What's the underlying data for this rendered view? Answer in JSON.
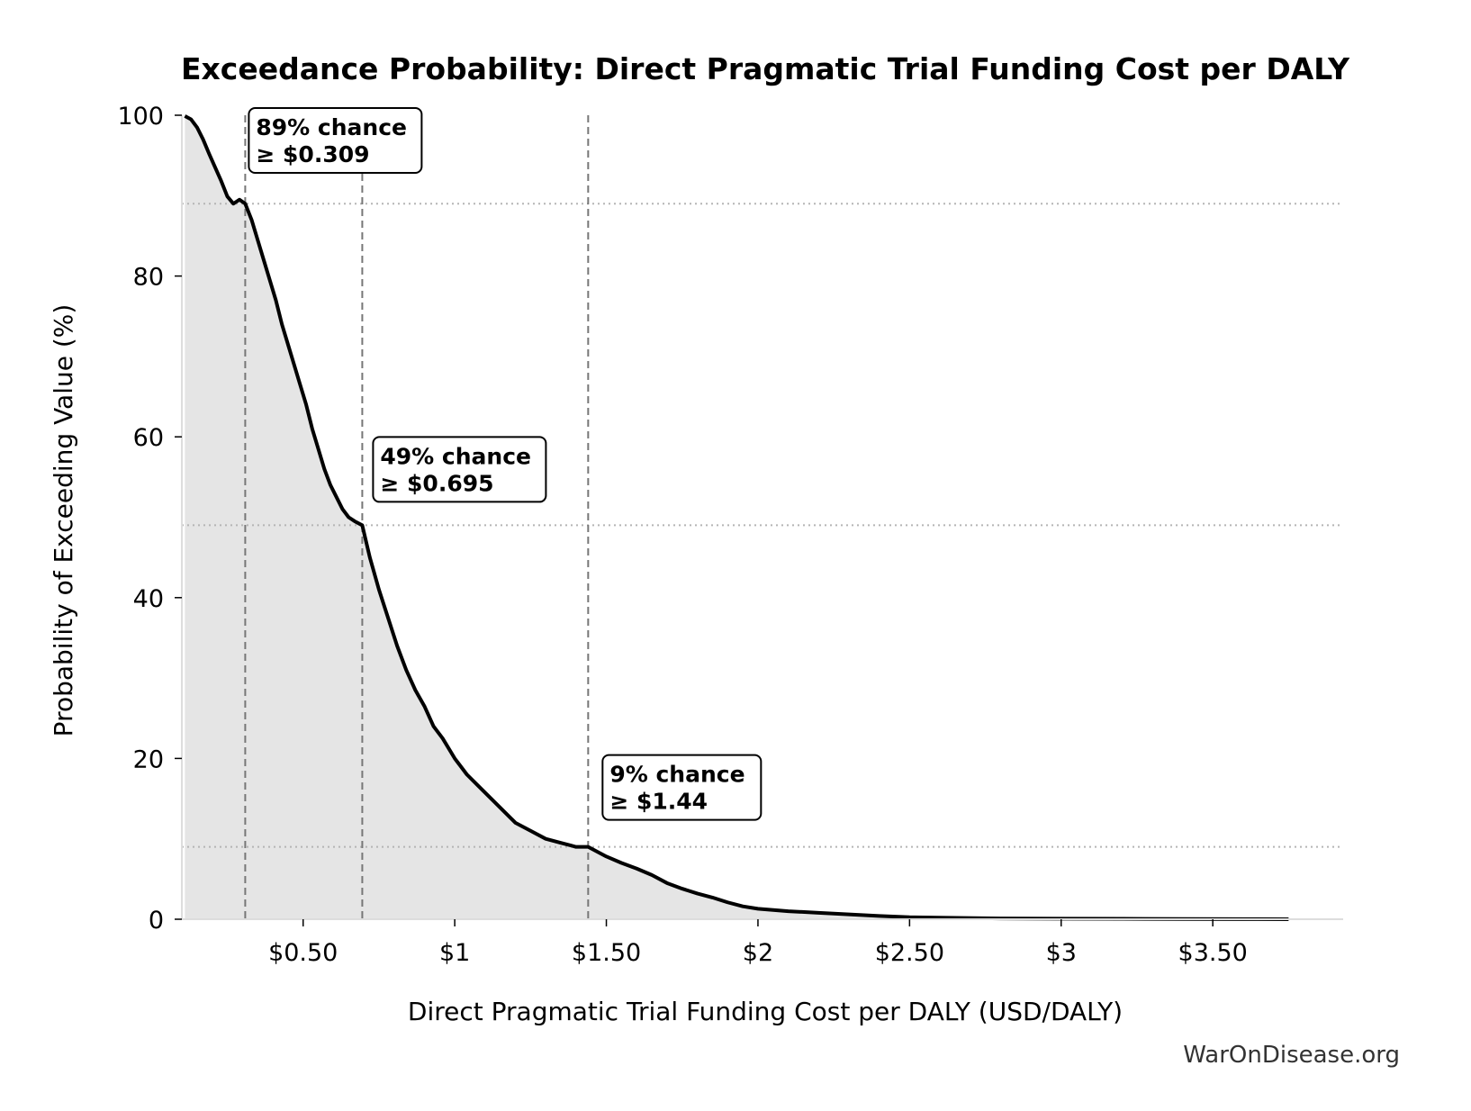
{
  "chart_data": {
    "type": "area",
    "title": "Exceedance Probability: Direct Pragmatic Trial Funding Cost per DALY",
    "xlabel": "Direct Pragmatic Trial Funding Cost per DALY (USD/DALY)",
    "ylabel": "Probability of Exceeding Value (%)",
    "xlim": [
      0.1,
      3.93
    ],
    "ylim": [
      0,
      100
    ],
    "x_ticks": [
      {
        "value": 0.5,
        "label": "$0.50"
      },
      {
        "value": 1.0,
        "label": "$1"
      },
      {
        "value": 1.5,
        "label": "$1.50"
      },
      {
        "value": 2.0,
        "label": "$2"
      },
      {
        "value": 2.5,
        "label": "$2.50"
      },
      {
        "value": 3.0,
        "label": "$3"
      },
      {
        "value": 3.5,
        "label": "$3.50"
      }
    ],
    "y_ticks": [
      {
        "value": 0,
        "label": "0"
      },
      {
        "value": 20,
        "label": "20"
      },
      {
        "value": 40,
        "label": "40"
      },
      {
        "value": 60,
        "label": "60"
      },
      {
        "value": 80,
        "label": "80"
      },
      {
        "value": 100,
        "label": "100"
      }
    ],
    "grid": false,
    "series": [
      {
        "x": [
          0.11,
          0.13,
          0.15,
          0.17,
          0.19,
          0.21,
          0.23,
          0.25,
          0.27,
          0.29,
          0.309,
          0.33,
          0.35,
          0.37,
          0.39,
          0.41,
          0.43,
          0.45,
          0.47,
          0.49,
          0.51,
          0.53,
          0.55,
          0.57,
          0.59,
          0.61,
          0.63,
          0.65,
          0.67,
          0.695,
          0.72,
          0.75,
          0.78,
          0.81,
          0.84,
          0.87,
          0.9,
          0.93,
          0.96,
          1.0,
          1.04,
          1.08,
          1.12,
          1.16,
          1.2,
          1.25,
          1.3,
          1.35,
          1.4,
          1.44,
          1.5,
          1.55,
          1.6,
          1.65,
          1.7,
          1.75,
          1.8,
          1.85,
          1.9,
          1.95,
          2.0,
          2.1,
          2.2,
          2.3,
          2.4,
          2.5,
          2.6,
          2.8,
          3.0,
          3.2,
          3.4,
          3.6,
          3.75
        ],
        "values": [
          99.9,
          99.5,
          98.5,
          97.0,
          95.2,
          93.5,
          91.8,
          89.9,
          89.0,
          89.5,
          89.0,
          87.0,
          84.5,
          82.0,
          79.5,
          77.0,
          74.0,
          71.5,
          69.0,
          66.5,
          64.0,
          61.0,
          58.5,
          56.0,
          54.0,
          52.5,
          51.0,
          50.0,
          49.5,
          49.0,
          45.0,
          41.0,
          37.5,
          34.0,
          31.0,
          28.5,
          26.5,
          24.0,
          22.5,
          20.0,
          18.0,
          16.5,
          15.0,
          13.5,
          12.0,
          11.0,
          10.0,
          9.5,
          9.0,
          9.0,
          7.8,
          7.0,
          6.3,
          5.5,
          4.5,
          3.8,
          3.2,
          2.7,
          2.1,
          1.6,
          1.3,
          1.0,
          0.8,
          0.6,
          0.4,
          0.25,
          0.2,
          0.1,
          0.07,
          0.05,
          0.03,
          0.02,
          0.0
        ]
      }
    ],
    "reference_lines": [
      {
        "x": 0.309,
        "y": 89
      },
      {
        "x": 0.695,
        "y": 49
      },
      {
        "x": 1.44,
        "y": 9
      }
    ],
    "annotations": [
      {
        "line1": "89% chance",
        "line2": "≥ $0.309"
      },
      {
        "line1": "49% chance",
        "line2": "≥ $0.695"
      },
      {
        "line1": "9% chance",
        "line2": "≥ $1.44"
      }
    ],
    "colors": {
      "line": "#000000",
      "fill": "#e5e5e5",
      "vline": "#777777",
      "hline": "#b5b5b5",
      "box_edge": "#000000",
      "box_fill": "#ffffff"
    }
  },
  "footer": "WarOnDisease.org"
}
